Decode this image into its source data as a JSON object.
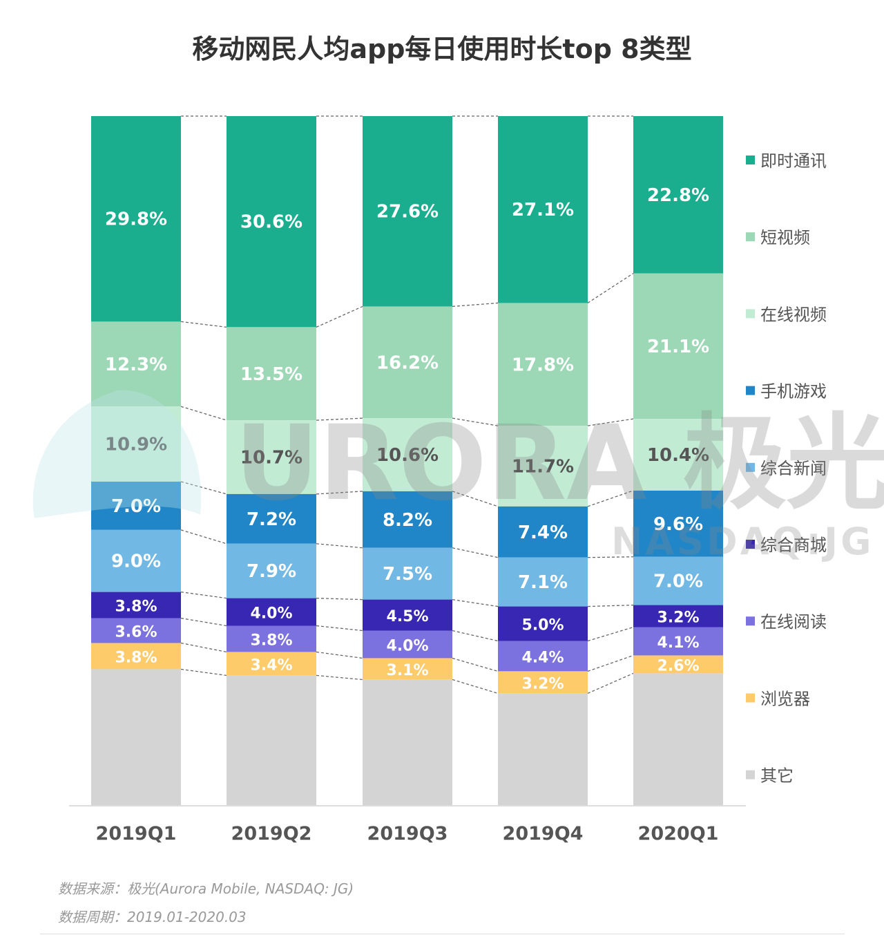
{
  "chart_data": {
    "type": "bar",
    "stacked": true,
    "title": "移动网民人均app每日使用时长top 8类型",
    "categories": [
      "2019Q1",
      "2019Q2",
      "2019Q3",
      "2019Q4",
      "2020Q1"
    ],
    "unit": "%",
    "ylim": [
      0,
      100
    ],
    "grid": false,
    "legend_position": "right",
    "series": [
      {
        "name": "即时通讯",
        "color": "#1aae8f",
        "label_color": "#ffffff",
        "values": [
          29.8,
          30.6,
          27.6,
          27.1,
          22.8
        ]
      },
      {
        "name": "短视频",
        "color": "#9dd8b6",
        "label_color": "#ffffff",
        "values": [
          12.3,
          13.5,
          16.2,
          17.8,
          21.1
        ]
      },
      {
        "name": "在线视频",
        "color": "#c2ebd4",
        "label_color": "#555555",
        "values": [
          10.9,
          10.7,
          10.6,
          11.7,
          10.4
        ]
      },
      {
        "name": "手机游戏",
        "color": "#2186c7",
        "label_color": "#ffffff",
        "values": [
          7.0,
          7.2,
          8.2,
          7.4,
          9.6
        ]
      },
      {
        "name": "综合新闻",
        "color": "#71b8e5",
        "label_color": "#ffffff",
        "values": [
          9.0,
          7.9,
          7.5,
          7.1,
          7.0
        ]
      },
      {
        "name": "综合商城",
        "color": "#3827b3",
        "label_color": "#ffffff",
        "values": [
          3.8,
          4.0,
          4.5,
          5.0,
          3.2
        ]
      },
      {
        "name": "在线阅读",
        "color": "#7c72df",
        "label_color": "#ffffff",
        "values": [
          3.6,
          3.8,
          4.0,
          4.4,
          4.1
        ]
      },
      {
        "name": "浏览器",
        "color": "#fecb6b",
        "label_color": "#ffffff",
        "values": [
          3.8,
          3.4,
          3.1,
          3.2,
          2.6
        ]
      },
      {
        "name": "其它",
        "color": "#d4d4d4",
        "label_color": null,
        "values": [
          19.8,
          18.9,
          18.3,
          16.3,
          19.2
        ]
      }
    ]
  },
  "watermark": {
    "main": "URORA 极光",
    "sub": "NASDAQ:JG"
  },
  "footer": {
    "source": "数据来源：极光(Aurora Mobile, NASDAQ: JG)",
    "period": "数据周期：2019.01-2020.03"
  }
}
